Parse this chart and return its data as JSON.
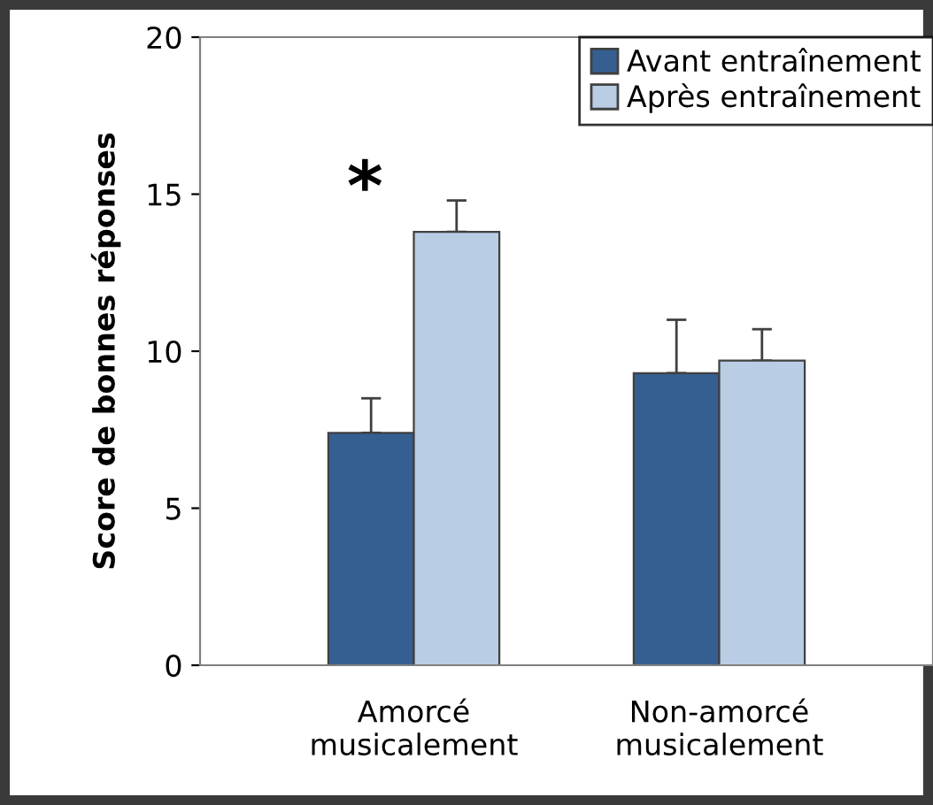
{
  "chart_data": {
    "type": "bar",
    "ylabel": "Score de bonnes réponses",
    "categories": [
      "Amorcé\nmusicalement",
      "Non-amorcé\nmusicalement"
    ],
    "series": [
      {
        "name": "Avant entraînement",
        "color": "#355f91",
        "values": [
          7.4,
          9.3
        ],
        "errors": [
          [
            7.4,
            8.5
          ],
          [
            9.3,
            11.0
          ]
        ]
      },
      {
        "name": "Après entraînement",
        "color": "#b9cde5",
        "values": [
          13.8,
          9.7
        ],
        "errors": [
          [
            13.8,
            14.8
          ],
          [
            9.7,
            10.7
          ]
        ]
      }
    ],
    "ylim": [
      0,
      20
    ],
    "yticks": [
      0,
      5,
      10,
      15,
      20
    ],
    "grid": false,
    "legend": "top right",
    "annotations": [
      "*"
    ]
  }
}
